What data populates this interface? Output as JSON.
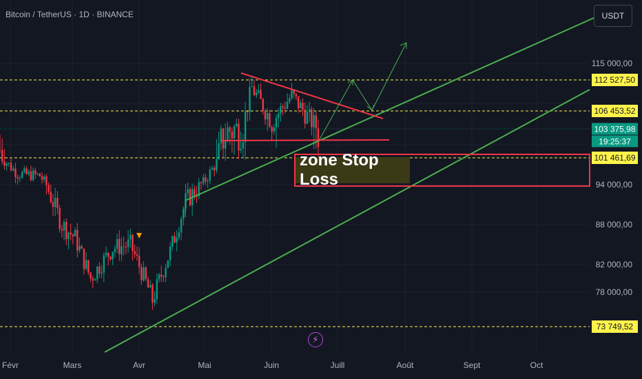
{
  "header": {
    "title": "Bitcoin / TetherUS · 1D · BINANCE",
    "currency_button": "USDT"
  },
  "annotations": {
    "zone_label": "zone Stop Loss"
  },
  "price_axis": {
    "ticks": [
      "115 000,00",
      "94 000,00",
      "88 000,00",
      "82 000,00",
      "78 000,00"
    ],
    "levels": [
      {
        "label": "112 527,50",
        "value": 112527.5
      },
      {
        "label": "106 453,52",
        "value": 106453.52
      },
      {
        "label": "101 461,69",
        "value": 101461.69
      },
      {
        "label": "73 749,52",
        "value": 73749.52
      }
    ],
    "last_price": "103 375,98",
    "countdown": "19:25:37"
  },
  "time_axis": {
    "ticks": [
      "Févr",
      "Mars",
      "Avr",
      "Mai",
      "Juin",
      "Juill",
      "Août",
      "Sept",
      "Oct"
    ]
  },
  "colors": {
    "background": "#131722",
    "up": "#089981",
    "down": "#f23645",
    "level_line": "#fff34a",
    "trend_line": "#4caf50",
    "resistance": "#f23645"
  },
  "chart_data": {
    "type": "candlestick",
    "title": "Bitcoin / TetherUS · 1D · BINANCE",
    "ylim": [
      70000,
      122000
    ],
    "x_months": [
      "Févr",
      "Mars",
      "Avr",
      "Mai",
      "Juin",
      "Juill",
      "Août",
      "Sept",
      "Oct"
    ],
    "close_path": [
      {
        "date": "2025-01-28",
        "close": 102000
      },
      {
        "date": "2025-02-05",
        "close": 97000
      },
      {
        "date": "2025-02-15",
        "close": 96500
      },
      {
        "date": "2025-02-25",
        "close": 88000
      },
      {
        "date": "2025-03-03",
        "close": 86000
      },
      {
        "date": "2025-03-10",
        "close": 80000
      },
      {
        "date": "2025-03-20",
        "close": 84500
      },
      {
        "date": "2025-03-28",
        "close": 85000
      },
      {
        "date": "2025-04-07",
        "close": 77000
      },
      {
        "date": "2025-04-15",
        "close": 84000
      },
      {
        "date": "2025-04-22",
        "close": 91500
      },
      {
        "date": "2025-04-30",
        "close": 94500
      },
      {
        "date": "2025-05-09",
        "close": 103000
      },
      {
        "date": "2025-05-18",
        "close": 104000
      },
      {
        "date": "2025-05-22",
        "close": 111000
      },
      {
        "date": "2025-05-31",
        "close": 104500
      },
      {
        "date": "2025-06-09",
        "close": 109500
      },
      {
        "date": "2025-06-16",
        "close": 105500
      },
      {
        "date": "2025-06-21",
        "close": 103375.98
      }
    ],
    "levels": [
      112527.5,
      106453.52,
      101461.69,
      73749.52
    ],
    "stop_loss_zone": [
      93500,
      101461.69
    ]
  }
}
